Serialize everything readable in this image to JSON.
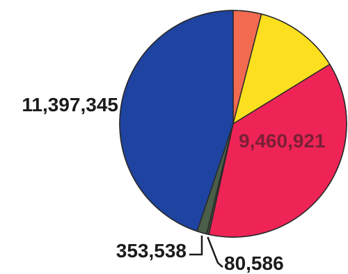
{
  "chart_data": {
    "type": "pie",
    "title": "",
    "slices": [
      {
        "value": 1020000,
        "label": "",
        "color": "#f26a4f"
      },
      {
        "value": 3100000,
        "label": "",
        "color": "#fcdf1e"
      },
      {
        "value": 9460921,
        "label": "9,460,921",
        "color": "#ef2456",
        "label_color": "#7a1f37"
      },
      {
        "value": 80586,
        "label": "80,586",
        "color": "#3d4f3a",
        "label_color": "#1b1b1b"
      },
      {
        "value": 353538,
        "label": "353,538",
        "color": "#4a5e48",
        "label_color": "#1b1b1b"
      },
      {
        "value": 11397345,
        "label": "11,397,345",
        "color": "#1e43a0",
        "label_color": "#1b1b1b"
      }
    ],
    "start_angle_deg": 0,
    "direction": "clockwise",
    "slice_border_color": "#2a2a2a"
  }
}
